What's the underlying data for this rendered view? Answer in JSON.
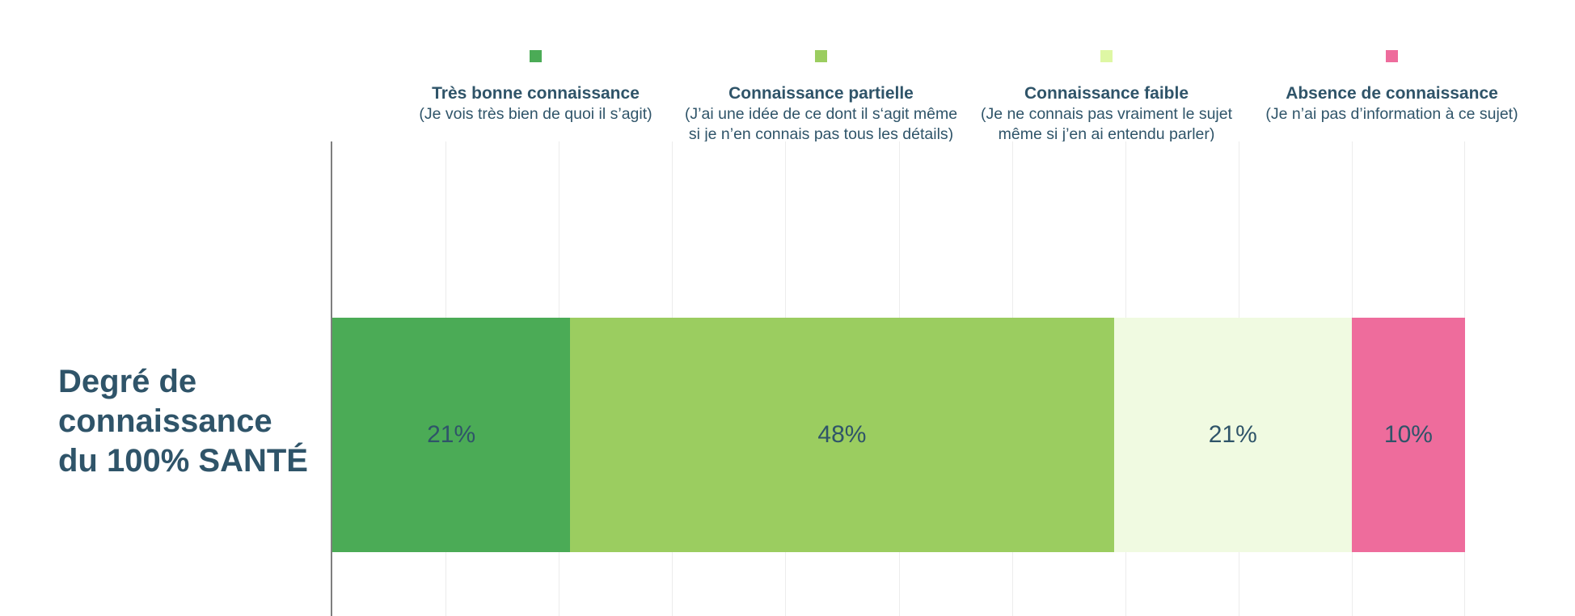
{
  "title": {
    "text": "Degré de connaissance du 100% SANTÉ",
    "lines": [
      "Degré de",
      "connaissance",
      "du 100% SANTÉ"
    ]
  },
  "legend": {
    "position": "top",
    "items": [
      {
        "label": "Très bonne connaissance",
        "description": "(Je vois très bien de quoi il s’agit)",
        "color": "#4BAB56"
      },
      {
        "label": "Connaissance partielle",
        "description": "(J’ai une idée de ce dont il s‘agit même si je n’en connais pas tous les détails)",
        "color": "#9BCD60"
      },
      {
        "label": "Connaissance faible",
        "description": "(Je ne connais pas vraiment le sujet même si j’en ai entendu parler)",
        "color": "#DEF7A4"
      },
      {
        "label": "Absence de connaissance",
        "description": "(Je n’ai pas d’information à ce sujet)",
        "color": "#EE6C9C"
      }
    ]
  },
  "chart_data": {
    "type": "bar",
    "orientation": "horizontal",
    "stacked": true,
    "categories": [
      "Degré de connaissance du 100% SANTÉ"
    ],
    "series": [
      {
        "name": "Très bonne connaissance",
        "values": [
          21
        ],
        "value_label": "21%",
        "color": "#4BAB56"
      },
      {
        "name": "Connaissance partielle",
        "values": [
          48
        ],
        "value_label": "48%",
        "color": "#9BCD60"
      },
      {
        "name": "Connaissance faible",
        "values": [
          21
        ],
        "value_label": "21%",
        "color": "#F0FAE1"
      },
      {
        "name": "Absence de connaissance",
        "values": [
          10
        ],
        "value_label": "10%",
        "color": "#EE6C9C"
      }
    ],
    "xlim": [
      0,
      100
    ],
    "gridline_step_percent": 10,
    "grid": "vertical",
    "legend_position": "top",
    "value_label_color": "#2F5469",
    "axis_color": "#7F7F7F",
    "gridline_color": "#ECECEC"
  }
}
